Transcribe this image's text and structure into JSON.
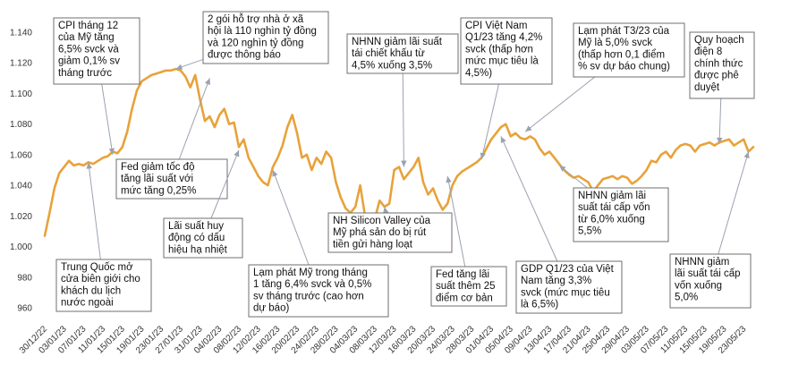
{
  "chart_data": {
    "type": "line",
    "xlabel": "",
    "ylabel": "",
    "ylim": [
      960,
      1140
    ],
    "grid": false,
    "legend": "none",
    "line_color": "#E8A23A",
    "y_ticks": [
      "960",
      "980",
      "1.000",
      "1.020",
      "1.040",
      "1.060",
      "1.080",
      "1.100",
      "1.120",
      "1.140"
    ],
    "x_ticks": [
      "30/12/22",
      "03/01/23",
      "07/01/23",
      "11/01/23",
      "15/01/23",
      "19/01/23",
      "23/01/23",
      "27/01/23",
      "31/01/23",
      "04/02/23",
      "08/02/23",
      "12/02/23",
      "16/02/23",
      "20/02/23",
      "24/02/23",
      "28/02/23",
      "04/03/23",
      "08/03/23",
      "12/03/23",
      "16/03/23",
      "20/03/23",
      "24/03/23",
      "28/03/23",
      "01/04/23",
      "05/04/23",
      "09/04/23",
      "13/04/23",
      "17/04/23",
      "21/04/23",
      "25/04/23",
      "29/04/23",
      "03/05/23",
      "07/05/23",
      "11/05/23",
      "15/05/23",
      "19/05/23",
      "23/05/23"
    ],
    "points": [
      [
        "30/12/22",
        1007
      ],
      [
        "31/12/22",
        1022
      ],
      [
        "01/01/23",
        1038
      ],
      [
        "02/01/23",
        1048
      ],
      [
        "03/01/23",
        1052
      ],
      [
        "04/01/23",
        1056
      ],
      [
        "05/01/23",
        1053
      ],
      [
        "06/01/23",
        1054
      ],
      [
        "07/01/23",
        1053
      ],
      [
        "08/01/23",
        1055
      ],
      [
        "09/01/23",
        1054
      ],
      [
        "10/01/23",
        1056
      ],
      [
        "11/01/23",
        1058
      ],
      [
        "12/01/23",
        1059
      ],
      [
        "13/01/23",
        1062
      ],
      [
        "14/01/23",
        1061
      ],
      [
        "15/01/23",
        1065
      ],
      [
        "16/01/23",
        1075
      ],
      [
        "17/01/23",
        1090
      ],
      [
        "18/01/23",
        1102
      ],
      [
        "19/01/23",
        1108
      ],
      [
        "20/01/23",
        1110
      ],
      [
        "21/01/23",
        1112
      ],
      [
        "22/01/23",
        1113
      ],
      [
        "23/01/23",
        1114
      ],
      [
        "24/01/23",
        1115
      ],
      [
        "25/01/23",
        1115
      ],
      [
        "26/01/23",
        1116
      ],
      [
        "27/01/23",
        1115
      ],
      [
        "28/01/23",
        1111
      ],
      [
        "29/01/23",
        1104
      ],
      [
        "30/01/23",
        1112
      ],
      [
        "31/01/23",
        1096
      ],
      [
        "01/02/23",
        1082
      ],
      [
        "02/02/23",
        1085
      ],
      [
        "03/02/23",
        1078
      ],
      [
        "04/02/23",
        1086
      ],
      [
        "05/02/23",
        1090
      ],
      [
        "06/02/23",
        1080
      ],
      [
        "07/02/23",
        1081
      ],
      [
        "08/02/23",
        1065
      ],
      [
        "09/02/23",
        1070
      ],
      [
        "10/02/23",
        1058
      ],
      [
        "11/02/23",
        1052
      ],
      [
        "12/02/23",
        1046
      ],
      [
        "13/02/23",
        1042
      ],
      [
        "14/02/23",
        1040
      ],
      [
        "15/02/23",
        1052
      ],
      [
        "16/02/23",
        1058
      ],
      [
        "17/02/23",
        1066
      ],
      [
        "18/02/23",
        1078
      ],
      [
        "19/02/23",
        1086
      ],
      [
        "20/02/23",
        1074
      ],
      [
        "21/02/23",
        1058
      ],
      [
        "22/02/23",
        1060
      ],
      [
        "23/02/23",
        1050
      ],
      [
        "24/02/23",
        1058
      ],
      [
        "25/02/23",
        1054
      ],
      [
        "26/02/23",
        1062
      ],
      [
        "27/02/23",
        1058
      ],
      [
        "28/02/23",
        1042
      ],
      [
        "01/03/23",
        1032
      ],
      [
        "02/03/23",
        1025
      ],
      [
        "03/03/23",
        1022
      ],
      [
        "04/03/23",
        1026
      ],
      [
        "05/03/23",
        1040
      ],
      [
        "06/03/23",
        1020
      ],
      [
        "07/03/23",
        1014
      ],
      [
        "08/03/23",
        1018
      ],
      [
        "09/03/23",
        1030
      ],
      [
        "10/03/23",
        1026
      ],
      [
        "11/03/23",
        1028
      ],
      [
        "12/03/23",
        1050
      ],
      [
        "13/03/23",
        1052
      ],
      [
        "14/03/23",
        1044
      ],
      [
        "15/03/23",
        1048
      ],
      [
        "16/03/23",
        1052
      ],
      [
        "17/03/23",
        1058
      ],
      [
        "18/03/23",
        1042
      ],
      [
        "19/03/23",
        1034
      ],
      [
        "20/03/23",
        1038
      ],
      [
        "21/03/23",
        1030
      ],
      [
        "22/03/23",
        1024
      ],
      [
        "23/03/23",
        1028
      ],
      [
        "24/03/23",
        1040
      ],
      [
        "25/03/23",
        1046
      ],
      [
        "26/03/23",
        1049
      ],
      [
        "27/03/23",
        1051
      ],
      [
        "28/03/23",
        1053
      ],
      [
        "29/03/23",
        1055
      ],
      [
        "30/03/23",
        1058
      ],
      [
        "31/03/23",
        1064
      ],
      [
        "01/04/23",
        1070
      ],
      [
        "02/04/23",
        1074
      ],
      [
        "03/04/23",
        1078
      ],
      [
        "04/04/23",
        1080
      ],
      [
        "05/04/23",
        1072
      ],
      [
        "06/04/23",
        1074
      ],
      [
        "07/04/23",
        1071
      ],
      [
        "08/04/23",
        1070
      ],
      [
        "09/04/23",
        1072
      ],
      [
        "10/04/23",
        1070
      ],
      [
        "11/04/23",
        1064
      ],
      [
        "12/04/23",
        1060
      ],
      [
        "13/04/23",
        1062
      ],
      [
        "14/04/23",
        1058
      ],
      [
        "15/04/23",
        1054
      ],
      [
        "16/04/23",
        1050
      ],
      [
        "17/04/23",
        1047
      ],
      [
        "18/04/23",
        1045
      ],
      [
        "19/04/23",
        1046
      ],
      [
        "20/04/23",
        1044
      ],
      [
        "21/04/23",
        1042
      ],
      [
        "22/04/23",
        1036
      ],
      [
        "23/04/23",
        1040
      ],
      [
        "24/04/23",
        1044
      ],
      [
        "25/04/23",
        1045
      ],
      [
        "26/04/23",
        1046
      ],
      [
        "27/04/23",
        1044
      ],
      [
        "28/04/23",
        1046
      ],
      [
        "29/04/23",
        1045
      ],
      [
        "30/04/23",
        1041
      ],
      [
        "01/05/23",
        1043
      ],
      [
        "02/05/23",
        1046
      ],
      [
        "03/05/23",
        1050
      ],
      [
        "04/05/23",
        1056
      ],
      [
        "05/05/23",
        1055
      ],
      [
        "06/05/23",
        1060
      ],
      [
        "07/05/23",
        1062
      ],
      [
        "08/05/23",
        1058
      ],
      [
        "09/05/23",
        1063
      ],
      [
        "10/05/23",
        1066
      ],
      [
        "11/05/23",
        1067
      ],
      [
        "12/05/23",
        1066
      ],
      [
        "13/05/23",
        1062
      ],
      [
        "14/05/23",
        1066
      ],
      [
        "15/05/23",
        1067
      ],
      [
        "16/05/23",
        1068
      ],
      [
        "17/05/23",
        1066
      ],
      [
        "18/05/23",
        1068
      ],
      [
        "19/05/23",
        1069
      ],
      [
        "20/05/23",
        1070
      ],
      [
        "21/05/23",
        1066
      ],
      [
        "22/05/23",
        1068
      ],
      [
        "23/05/23",
        1070
      ],
      [
        "24/05/23",
        1062
      ],
      [
        "25/05/23",
        1065
      ]
    ],
    "annotations": [
      {
        "lines": [
          "CPI tháng 12",
          "của Mỹ tăng",
          "6,5% svck và",
          "giảm 0,1% sv",
          "tháng trước"
        ],
        "date": "13/01/23",
        "value": 1060
      },
      {
        "lines": [
          "Fed giảm tốc độ",
          "tăng lãi suất với",
          "mức tăng 0,25%"
        ],
        "date": "02/02/23",
        "value": 1110
      },
      {
        "lines": [
          "2 gói hỗ trợ nhà ở xã",
          "hội là 110 nghìn tỷ đồng",
          "và 120 nghìn tỷ đồng",
          "được thông báo"
        ],
        "date": "26/01/23",
        "value": 1116
      },
      {
        "lines": [
          "NHNN giảm lãi suất",
          "tái chiết khấu từ",
          "4,5% xuống 3,5%"
        ],
        "date": "14/03/23",
        "value": 1052
      },
      {
        "lines": [
          "CPI Việt Nam",
          "Q1/23 tăng 4,2%",
          "svck (thấp hơn",
          "mức mục tiêu là",
          "4,5%)"
        ],
        "date": "30/03/23",
        "value": 1057
      },
      {
        "lines": [
          "Lạm phát T3/23 của",
          "Mỹ là 5,0% svck",
          "(thấp hơn 0,1 điểm",
          "% sv dự báo chung)"
        ],
        "date": "08/04/23",
        "value": 1075
      },
      {
        "lines": [
          "Quy hoạch",
          "điện 8",
          "chính thức",
          "được phê",
          "duyệt"
        ],
        "date": "18/05/23",
        "value": 1067
      },
      {
        "lines": [
          "Lãi suất huy",
          "động có dấu",
          "hiệu hạ nhiệt"
        ],
        "date": "08/02/23",
        "value": 1063
      },
      {
        "lines": [
          "Trung Quốc mở",
          "cửa biên giới cho",
          "khách du lịch",
          "nước ngoài"
        ],
        "date": "08/01/23",
        "value": 1055
      },
      {
        "lines": [
          "Lạm phát Mỹ trong tháng",
          "1 tăng 6,4% svck và 0,5%",
          "sv tháng trước (cao hơn",
          "dự báo)"
        ],
        "date": "15/02/23",
        "value": 1050
      },
      {
        "lines": [
          "NH Silicon Valley của",
          "Mỹ phá sản do bị rút",
          "tiền gửi hàng loạt"
        ],
        "date": "10/03/23",
        "value": 1026
      },
      {
        "lines": [
          "Fed tăng lãi",
          "suất thêm 25",
          "điểm cơ bản"
        ],
        "date": "23/03/23",
        "value": 1046
      },
      {
        "lines": [
          "GDP Q1/23 của Việt",
          "Nam tăng 3,3%",
          "svck (mức mục tiêu",
          "là 6,5%)"
        ],
        "date": "03/04/23",
        "value": 1072
      },
      {
        "lines": [
          "NHNN giảm lãi",
          "suất tái cấp vốn",
          "từ 6,0% xuống",
          "5,5%"
        ],
        "date": "15/04/23",
        "value": 1053
      },
      {
        "lines": [
          "NHNN giảm",
          "lãi suất tái cấp",
          "vốn xuống",
          "5,0%"
        ],
        "date": "24/05/23",
        "value": 1062
      }
    ]
  }
}
